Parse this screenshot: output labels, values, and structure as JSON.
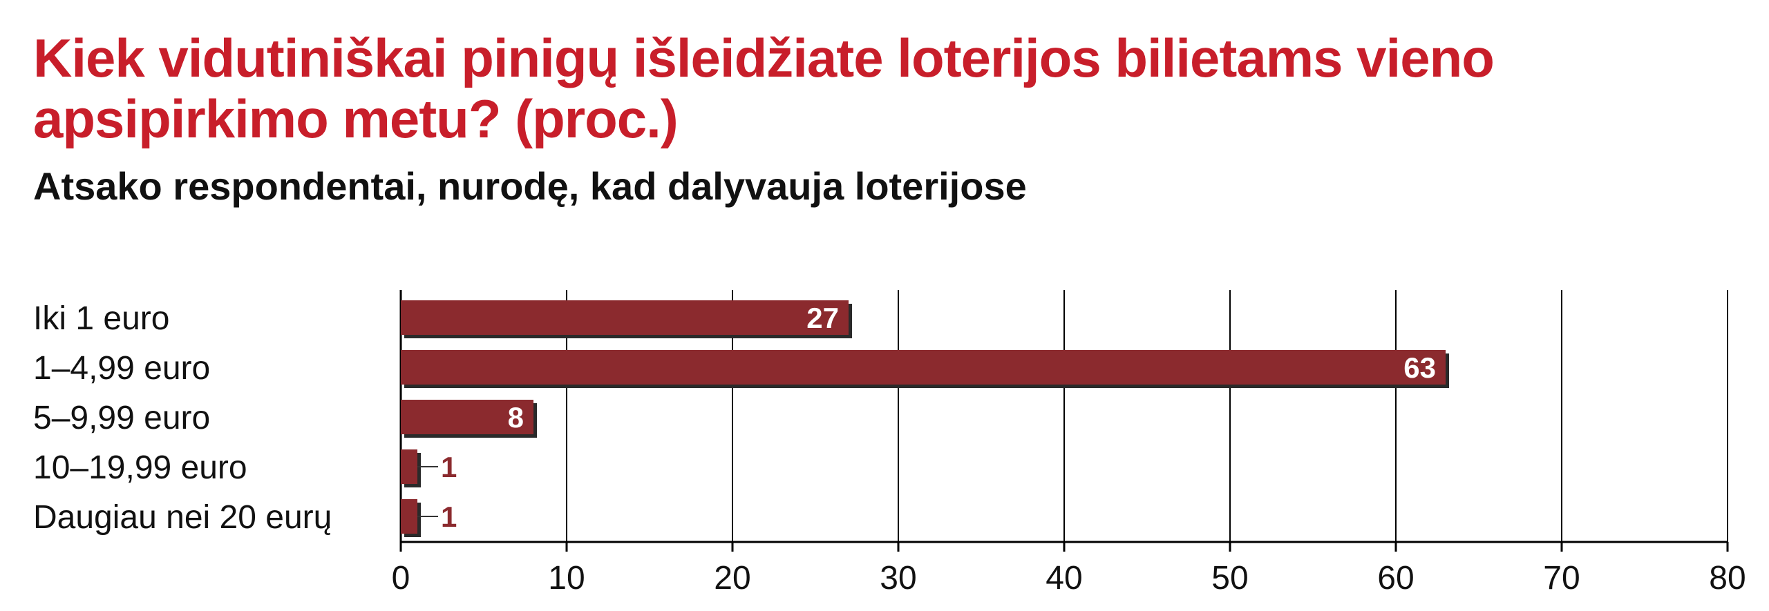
{
  "title": "Kiek vidutiniškai pinigų išleidžiate loterijos bilietams vieno apsipirkimo metu? (proc.)",
  "subtitle": "Atsako respondentai, nurodę, kad dalyvauja loterijose",
  "colors": {
    "title": "#c81e2a",
    "bar": "#8b2a2e",
    "bar_shadow": "#2a2a2a",
    "grid": "#000000"
  },
  "chart_data": {
    "type": "bar",
    "orientation": "horizontal",
    "title": "Kiek vidutiniškai pinigų išleidžiate loterijos bilietams vieno apsipirkimo metu? (proc.)",
    "subtitle": "Atsako respondentai, nurodę, kad dalyvauja loterijose",
    "categories": [
      "Iki 1 euro",
      "1–4,99 euro",
      "5–9,99 euro",
      "10–19,99 euro",
      "Daugiau nei 20 eurų"
    ],
    "values": [
      27,
      63,
      8,
      1,
      1
    ],
    "value_labels": [
      "27",
      "63",
      "8",
      "1",
      "1"
    ],
    "xlim": [
      0,
      80
    ],
    "xticks": [
      0,
      10,
      20,
      30,
      40,
      50,
      60,
      70,
      80
    ],
    "xtick_labels": [
      "0",
      "10",
      "20",
      "30",
      "40",
      "50",
      "60",
      "70",
      "80"
    ],
    "grid": "vertical",
    "xlabel": "",
    "ylabel": ""
  }
}
